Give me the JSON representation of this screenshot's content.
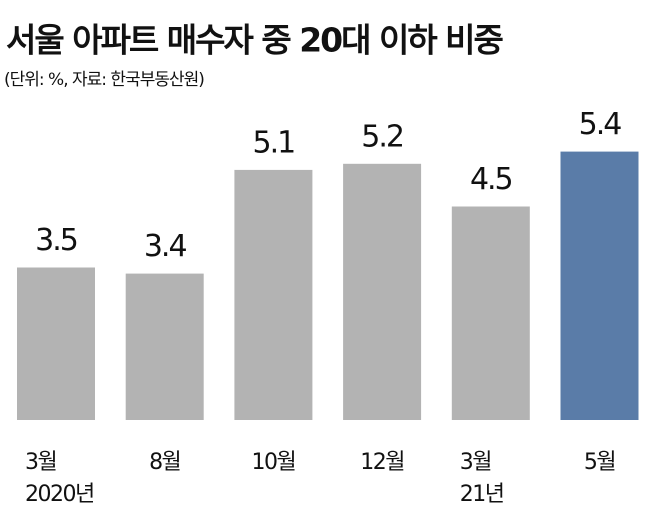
{
  "chart_data": {
    "type": "bar",
    "title": "서울 아파트 매수자 중 20대 이하 비중",
    "subtitle": "(단위: %, 자료: 한국부동산원)",
    "categories": [
      "3월",
      "8월",
      "10월",
      "12월",
      "3월",
      "5월"
    ],
    "year_labels": [
      "2020년",
      null,
      null,
      null,
      "21년",
      null
    ],
    "values": [
      3.5,
      3.4,
      5.1,
      5.2,
      4.5,
      5.4
    ],
    "colors": [
      "#b3b3b3",
      "#b3b3b3",
      "#b3b3b3",
      "#b3b3b3",
      "#b3b3b3",
      "#5a7ca8"
    ],
    "ylim": [
      1,
      6
    ]
  }
}
